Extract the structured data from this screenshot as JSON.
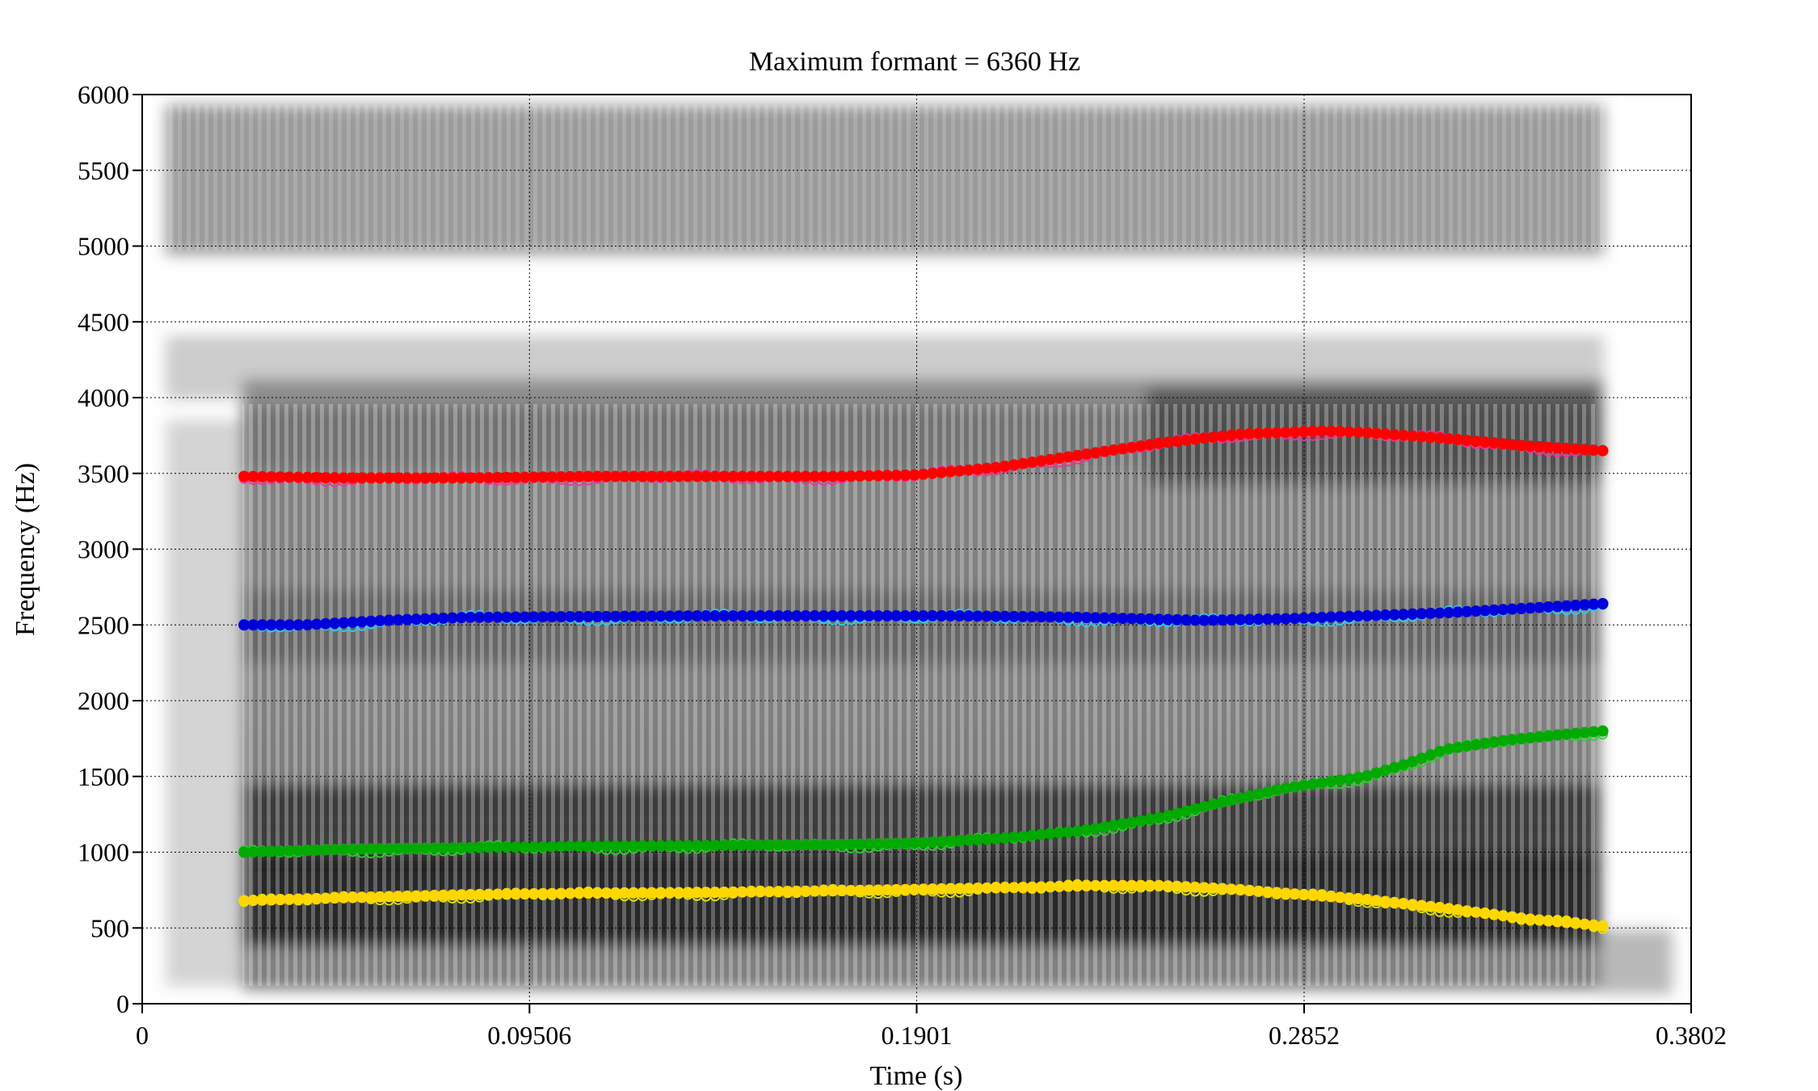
{
  "chart_data": {
    "type": "scatter",
    "title": "Maximum formant = 6360 Hz",
    "xlabel": "Time (s)",
    "ylabel": "Frequency (Hz)",
    "xlim": [
      0,
      0.3802
    ],
    "ylim": [
      0,
      6000
    ],
    "x_ticks": [
      {
        "value": 0,
        "label": "0"
      },
      {
        "value": 0.09506,
        "label": "0.09506"
      },
      {
        "value": 0.1901,
        "label": "0.1901"
      },
      {
        "value": 0.2852,
        "label": "0.2852"
      },
      {
        "value": 0.3802,
        "label": "0.3802"
      }
    ],
    "y_ticks": [
      {
        "value": 0,
        "label": "0"
      },
      {
        "value": 500,
        "label": "500"
      },
      {
        "value": 1000,
        "label": "1000"
      },
      {
        "value": 1500,
        "label": "1500"
      },
      {
        "value": 2000,
        "label": "2000"
      },
      {
        "value": 2500,
        "label": "2500"
      },
      {
        "value": 3000,
        "label": "3000"
      },
      {
        "value": 3500,
        "label": "3500"
      },
      {
        "value": 4000,
        "label": "4000"
      },
      {
        "value": 4500,
        "label": "4500"
      },
      {
        "value": 5000,
        "label": "5000"
      },
      {
        "value": 5500,
        "label": "5500"
      },
      {
        "value": 6000,
        "label": "6000"
      }
    ],
    "grid": true,
    "background": "spectrogram (grayscale)",
    "series": [
      {
        "color_fit": "#ffd700",
        "color_raw": "#e6e600",
        "points": [
          [
            0.025,
            680
          ],
          [
            0.05,
            700
          ],
          [
            0.08,
            720
          ],
          [
            0.11,
            730
          ],
          [
            0.14,
            735
          ],
          [
            0.17,
            745
          ],
          [
            0.2,
            760
          ],
          [
            0.22,
            770
          ],
          [
            0.235,
            780
          ],
          [
            0.25,
            780
          ],
          [
            0.265,
            760
          ],
          [
            0.28,
            730
          ],
          [
            0.3,
            690
          ],
          [
            0.32,
            630
          ],
          [
            0.34,
            560
          ],
          [
            0.36,
            510
          ],
          [
            0.3585,
            470
          ]
        ]
      },
      {
        "color_fit": "#00aa00",
        "color_raw": "#33cc33",
        "points": [
          [
            0.025,
            1000
          ],
          [
            0.05,
            1020
          ],
          [
            0.08,
            1030
          ],
          [
            0.11,
            1040
          ],
          [
            0.14,
            1045
          ],
          [
            0.17,
            1050
          ],
          [
            0.19,
            1060
          ],
          [
            0.21,
            1090
          ],
          [
            0.23,
            1140
          ],
          [
            0.25,
            1230
          ],
          [
            0.265,
            1330
          ],
          [
            0.28,
            1420
          ],
          [
            0.3,
            1500
          ],
          [
            0.31,
            1580
          ],
          [
            0.32,
            1680
          ],
          [
            0.335,
            1740
          ],
          [
            0.35,
            1780
          ],
          [
            0.3585,
            1800
          ]
        ]
      },
      {
        "color_fit": "#0000dd",
        "color_raw": "#33ccee",
        "points": [
          [
            0.025,
            2500
          ],
          [
            0.04,
            2500
          ],
          [
            0.06,
            2530
          ],
          [
            0.08,
            2550
          ],
          [
            0.11,
            2555
          ],
          [
            0.14,
            2560
          ],
          [
            0.17,
            2560
          ],
          [
            0.2,
            2560
          ],
          [
            0.23,
            2550
          ],
          [
            0.26,
            2530
          ],
          [
            0.28,
            2540
          ],
          [
            0.3,
            2560
          ],
          [
            0.32,
            2580
          ],
          [
            0.34,
            2610
          ],
          [
            0.3585,
            2640
          ]
        ]
      },
      {
        "color_fit": "#ff0000",
        "color_raw": "#ee3399",
        "points": [
          [
            0.025,
            3480
          ],
          [
            0.05,
            3470
          ],
          [
            0.08,
            3470
          ],
          [
            0.11,
            3480
          ],
          [
            0.14,
            3480
          ],
          [
            0.17,
            3480
          ],
          [
            0.19,
            3490
          ],
          [
            0.21,
            3540
          ],
          [
            0.23,
            3620
          ],
          [
            0.25,
            3700
          ],
          [
            0.27,
            3760
          ],
          [
            0.29,
            3780
          ],
          [
            0.3,
            3770
          ],
          [
            0.32,
            3730
          ],
          [
            0.34,
            3680
          ],
          [
            0.3585,
            3650
          ]
        ]
      }
    ]
  }
}
